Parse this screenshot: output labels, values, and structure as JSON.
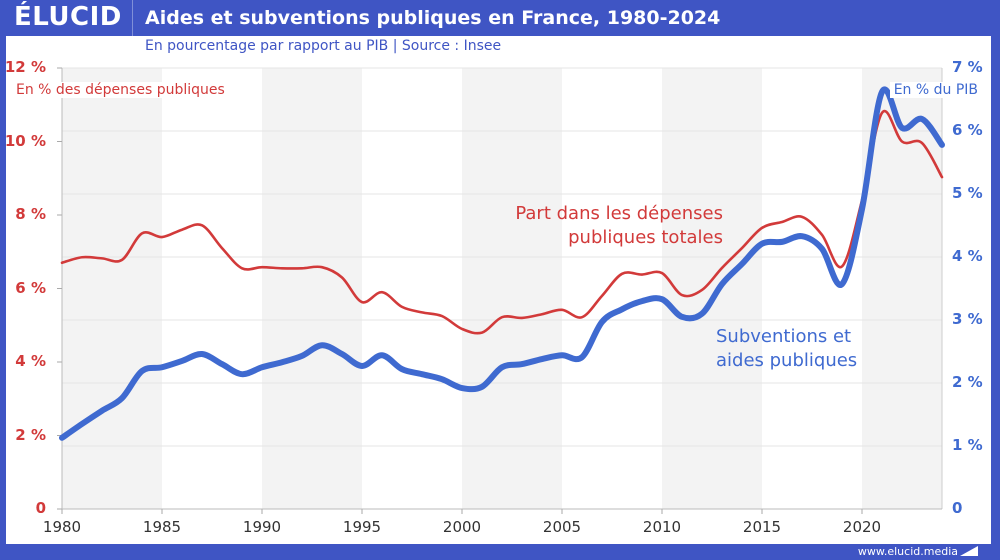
{
  "header": {
    "logo": "ÉLUCID",
    "title": "Aides et subventions publiques en France, 1980-2024",
    "subtitle": "En pourcentage par rapport au PIB  |  Source : Insee"
  },
  "footer": {
    "url": "www.elucid.media"
  },
  "colors": {
    "brand": "#3f55c4",
    "red_series": "#d23a3a",
    "blue_series": "#3f6ad0",
    "band": "#f3f3f3",
    "grid": "#e6e6e6"
  },
  "chart_data": {
    "type": "line",
    "title": "Aides et subventions publiques en France, 1980-2024",
    "subtitle": "En pourcentage par rapport au PIB | Source : Insee",
    "xlabel": "",
    "x_ticks": [
      "1980",
      "1985",
      "1990",
      "1995",
      "2000",
      "2005",
      "2010",
      "2015",
      "2020"
    ],
    "xlim": [
      1980,
      2024
    ],
    "left_axis": {
      "label": "En % des dépenses publiques",
      "ylim": [
        0,
        12
      ],
      "ticks": [
        "0",
        "2 %",
        "4 %",
        "6 %",
        "8 %",
        "10 %",
        "12 %"
      ],
      "tick_values": [
        0,
        2,
        4,
        6,
        8,
        10,
        12
      ]
    },
    "right_axis": {
      "label": "En % du PIB",
      "ylim": [
        0,
        7
      ],
      "ticks": [
        "0",
        "1 %",
        "2 %",
        "3 %",
        "4 %",
        "5 %",
        "6 %",
        "7 %"
      ],
      "tick_values": [
        0,
        1,
        2,
        3,
        4,
        5,
        6,
        7
      ]
    },
    "grid": true,
    "alternating_bands": "5-year",
    "x": [
      1980,
      1981,
      1982,
      1983,
      1984,
      1985,
      1986,
      1987,
      1988,
      1989,
      1990,
      1991,
      1992,
      1993,
      1994,
      1995,
      1996,
      1997,
      1998,
      1999,
      2000,
      2001,
      2002,
      2003,
      2004,
      2005,
      2006,
      2007,
      2008,
      2009,
      2010,
      2011,
      2012,
      2013,
      2014,
      2015,
      2016,
      2017,
      2018,
      2019,
      2020,
      2021,
      2022,
      2023,
      2024
    ],
    "series": [
      {
        "name": "Part dans les dépenses publiques totales",
        "axis": "left",
        "unit": "% des dépenses publiques",
        "annotation": [
          "Part dans les dépenses",
          "publiques totales"
        ],
        "values": [
          6.7,
          6.85,
          6.82,
          6.78,
          7.5,
          7.4,
          7.6,
          7.72,
          7.1,
          6.55,
          6.58,
          6.55,
          6.55,
          6.58,
          6.3,
          5.63,
          5.9,
          5.5,
          5.35,
          5.25,
          4.9,
          4.8,
          5.22,
          5.2,
          5.3,
          5.42,
          5.22,
          5.8,
          6.4,
          6.38,
          6.42,
          5.82,
          5.96,
          6.56,
          7.1,
          7.65,
          7.81,
          7.95,
          7.46,
          6.6,
          8.4,
          10.78,
          10.0,
          9.96,
          9.03
        ]
      },
      {
        "name": "Subventions et aides publiques",
        "axis": "right",
        "unit": "% du PIB",
        "annotation": [
          "Subventions et",
          "aides publiques"
        ],
        "values": [
          1.13,
          1.35,
          1.56,
          1.76,
          2.19,
          2.25,
          2.35,
          2.46,
          2.3,
          2.14,
          2.25,
          2.33,
          2.43,
          2.6,
          2.46,
          2.27,
          2.44,
          2.22,
          2.14,
          2.06,
          1.92,
          1.94,
          2.25,
          2.3,
          2.38,
          2.44,
          2.41,
          2.97,
          3.17,
          3.3,
          3.33,
          3.05,
          3.1,
          3.57,
          3.89,
          4.21,
          4.24,
          4.33,
          4.13,
          3.57,
          4.76,
          6.62,
          6.05,
          6.19,
          5.78
        ]
      }
    ]
  }
}
